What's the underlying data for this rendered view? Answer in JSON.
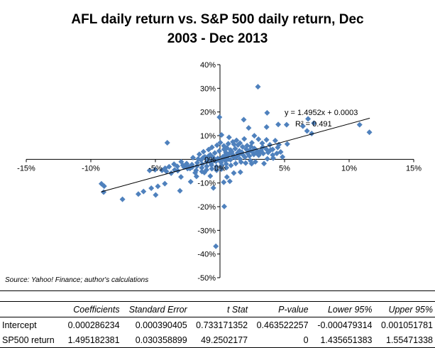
{
  "chart_data": {
    "type": "scatter",
    "title_line1": "AFL daily return vs. S&P 500  daily return, Dec",
    "title_line2": "2003 - Dec 2013",
    "xlim": [
      -0.15,
      0.15
    ],
    "ylim": [
      -0.5,
      0.4
    ],
    "x_ticks": [
      {
        "v": -0.15,
        "label": "-15%"
      },
      {
        "v": -0.1,
        "label": "-10%"
      },
      {
        "v": -0.05,
        "label": "-5%"
      },
      {
        "v": 0.0,
        "label": "0%"
      },
      {
        "v": 0.05,
        "label": "5%"
      },
      {
        "v": 0.1,
        "label": "10%"
      },
      {
        "v": 0.15,
        "label": "15%"
      }
    ],
    "y_ticks": [
      {
        "v": 0.4,
        "label": "40%"
      },
      {
        "v": 0.3,
        "label": "30%"
      },
      {
        "v": 0.2,
        "label": "20%"
      },
      {
        "v": 0.1,
        "label": "10%"
      },
      {
        "v": 0.0,
        "label": "0%"
      },
      {
        "v": -0.1,
        "label": "-10%"
      },
      {
        "v": -0.2,
        "label": "-20%"
      },
      {
        "v": -0.3,
        "label": "-30%"
      },
      {
        "v": -0.4,
        "label": "-40%"
      },
      {
        "v": -0.5,
        "label": "-50%"
      }
    ],
    "marker_color": "#4f81bd",
    "trendline": {
      "slope": 1.4952,
      "intercept": 0.0003,
      "x_range": [
        -0.092,
        0.116
      ]
    },
    "equation_label": "y = 1.4952x + 0.0003",
    "r2_label": "R² = 0.491",
    "source_note": "Source:  Yahoo! Finance; author's calculations",
    "points": [
      [
        0.0294,
        0.3067
      ],
      [
        -0.0918,
        -0.1033
      ],
      [
        -0.0897,
        -0.1135
      ],
      [
        -0.0901,
        -0.1384
      ],
      [
        -0.0408,
        0.07
      ],
      [
        -0.0755,
        -0.1688
      ],
      [
        -0.0632,
        -0.1466
      ],
      [
        -0.0592,
        -0.1359
      ],
      [
        -0.0532,
        -0.122
      ],
      [
        -0.0481,
        -0.1143
      ],
      [
        -0.0427,
        -0.103
      ],
      [
        -0.0498,
        -0.1505
      ],
      [
        -0.031,
        -0.133
      ],
      [
        -0.0051,
        -0.1208
      ],
      [
        0.0033,
        -0.1993
      ],
      [
        -0.0032,
        -0.3674
      ],
      [
        0.0029,
        -0.0967
      ],
      [
        0.0012,
        0.1029
      ],
      [
        -0.0004,
        0.178
      ],
      [
        0.0365,
        0.1965
      ],
      [
        0.0184,
        0.1674
      ],
      [
        0.0222,
        0.1328
      ],
      [
        0.0361,
        0.1362
      ],
      [
        0.0451,
        0.1471
      ],
      [
        0.0516,
        0.1462
      ],
      [
        0.0642,
        0.1401
      ],
      [
        0.0682,
        0.1707
      ],
      [
        0.0674,
        0.1197
      ],
      [
        0.071,
        0.1089
      ],
      [
        0.0727,
        0.1529
      ],
      [
        0.1081,
        0.146
      ],
      [
        0.1157,
        0.1142
      ],
      [
        0.0521,
        0.0649
      ],
      [
        0.0456,
        0.0621
      ],
      [
        0.036,
        0.0825
      ],
      [
        0.0408,
        0.0418
      ],
      [
        0.0341,
        -0.0178
      ],
      [
        0.0314,
        0.0296
      ],
      [
        0.0245,
        -0.0185
      ],
      [
        -0.0182,
        -0.0722
      ],
      [
        -0.0227,
        -0.0945
      ],
      [
        -0.0302,
        -0.0744
      ],
      [
        -0.0378,
        -0.0587
      ],
      [
        -0.0351,
        -0.0446
      ],
      [
        -0.0278,
        -0.033
      ],
      [
        -0.0545,
        -0.047
      ],
      [
        -0.0503,
        -0.044
      ],
      [
        -0.0449,
        -0.0465
      ],
      [
        -0.0415,
        -0.0513
      ],
      [
        -0.0327,
        -0.0482
      ],
      [
        0.0076,
        -0.0928
      ],
      [
        0.0054,
        -0.0749
      ],
      [
        0.0107,
        -0.0577
      ],
      [
        0.0158,
        -0.0542
      ],
      [
        -0.0075,
        -0.0707
      ],
      [
        -0.0121,
        -0.0561
      ],
      [
        -0.0185,
        -0.0467
      ],
      [
        -0.0232,
        -0.0387
      ],
      [
        -0.0252,
        -0.0267
      ],
      [
        0.0188,
        0.086
      ],
      [
        0.0128,
        0.0802
      ],
      [
        0.007,
        0.0929
      ],
      [
        0.0109,
        0.0633
      ],
      [
        0.0247,
        0.07
      ],
      [
        0.0266,
        0.0998
      ],
      [
        0.0298,
        0.085
      ],
      [
        0.0327,
        0.0683
      ],
      [
        0.0386,
        0.0614
      ],
      [
        0.0428,
        0.0789
      ],
      [
        0.0447,
        0.0501
      ],
      [
        -0.0128,
        0.0321
      ],
      [
        -0.0088,
        0.0412
      ],
      [
        -0.0062,
        0.051
      ],
      [
        -0.0023,
        0.0596
      ],
      [
        0.0003,
        0.0708
      ],
      [
        -0.016,
        0.0213
      ],
      [
        -0.0117,
        0.0107
      ],
      [
        -0.0075,
        0.0192
      ],
      [
        -0.004,
        0.0268
      ],
      [
        -0.0006,
        0.0353
      ],
      [
        0.0031,
        0.0424
      ],
      [
        0.0054,
        0.0478
      ],
      [
        0.0082,
        0.0392
      ],
      [
        0.0118,
        0.0447
      ],
      [
        0.015,
        0.0357
      ],
      [
        0.0175,
        0.0527
      ],
      [
        0.0203,
        0.0433
      ],
      [
        0.0231,
        0.0388
      ],
      [
        0.0267,
        0.0461
      ],
      [
        0.029,
        0.0342
      ],
      [
        -0.03,
        -0.0101
      ],
      [
        -0.0258,
        -0.0179
      ],
      [
        -0.0217,
        -0.0223
      ],
      [
        -0.0176,
        -0.0144
      ],
      [
        -0.0137,
        -0.0205
      ],
      [
        -0.0104,
        -0.011
      ],
      [
        -0.0069,
        -0.0165
      ],
      [
        -0.0031,
        -0.0082
      ],
      [
        0.0008,
        -0.0133
      ],
      [
        0.0042,
        -0.006
      ],
      [
        0.0081,
        -0.0021
      ],
      [
        0.0119,
        0.0063
      ],
      [
        0.0155,
        0.0011
      ],
      [
        0.0193,
        0.0093
      ],
      [
        0.0228,
        0.0141
      ],
      [
        0.0262,
        0.0205
      ],
      [
        0.03,
        0.0172
      ],
      [
        0.0335,
        0.0246
      ],
      [
        0.0373,
        0.0288
      ],
      [
        0.0408,
        0.0181
      ],
      [
        -0.0251,
        -0.0393
      ],
      [
        -0.0215,
        -0.0332
      ],
      [
        -0.0178,
        -0.0288
      ],
      [
        -0.0141,
        -0.0357
      ],
      [
        -0.0103,
        -0.0295
      ],
      [
        -0.0066,
        -0.0241
      ],
      [
        -0.0028,
        -0.0307
      ],
      [
        0.0012,
        -0.0254
      ],
      [
        0.0048,
        -0.0198
      ],
      [
        0.0085,
        -0.0255
      ],
      [
        0.0122,
        -0.0178
      ],
      [
        0.0163,
        -0.0114
      ],
      [
        0.0199,
        -0.016
      ],
      [
        0.0236,
        -0.0058
      ],
      [
        0.0274,
        -0.0105
      ],
      [
        -0.0356,
        -0.0203
      ],
      [
        -0.033,
        -0.0296
      ],
      [
        -0.0287,
        -0.0253
      ],
      [
        -0.0394,
        -0.0312
      ],
      [
        -0.0425,
        -0.0375
      ],
      [
        -0.0209,
        0.0071
      ],
      [
        -0.0169,
        0.0019
      ],
      [
        -0.0131,
        0.0066
      ],
      [
        -0.0092,
        0.0002
      ],
      [
        -0.0054,
        0.0085
      ],
      [
        -0.0018,
        0.0037
      ],
      [
        0.0021,
        0.0103
      ],
      [
        0.006,
        0.0159
      ],
      [
        0.0097,
        0.0208
      ],
      [
        0.0136,
        0.0265
      ],
      [
        0.017,
        0.0298
      ],
      [
        0.0214,
        0.0253
      ],
      [
        0.0249,
        0.0318
      ],
      [
        0.0283,
        0.0268
      ],
      [
        0.0318,
        0.0372
      ],
      [
        0.0046,
        0.0285
      ],
      [
        0.0092,
        0.0318
      ],
      [
        0.0035,
        0.0153
      ],
      [
        -0.0104,
        -0.0442
      ],
      [
        -0.0063,
        -0.0398
      ],
      [
        -0.0026,
        -0.0461
      ],
      [
        0.0011,
        -0.0415
      ],
      [
        0.005,
        -0.0352
      ],
      [
        -0.014,
        -0.0515
      ],
      [
        -0.0192,
        -0.0568
      ],
      [
        0.003,
        0.0567
      ],
      [
        0.0064,
        0.0659
      ],
      [
        0.01,
        0.0737
      ],
      [
        0.0139,
        0.0607
      ],
      [
        0.0155,
        0.0684
      ],
      [
        0.021,
        0.0579
      ],
      [
        0.0239,
        0.0544
      ],
      [
        0.0331,
        0.0518
      ],
      [
        0.0359,
        0.0428
      ],
      [
        0.0392,
        0.0397
      ],
      [
        -0.0003,
        -0.004
      ],
      [
        -0.001,
        0.001
      ],
      [
        0.0015,
        -0.002
      ],
      [
        0.0025,
        0.003
      ],
      [
        -0.002,
        0.0015
      ],
      [
        0.0044,
        0.0074
      ],
      [
        -0.0045,
        -0.0048
      ],
      [
        0.0064,
        0.0006
      ],
      [
        -0.008,
        -0.006
      ],
      [
        0.0102,
        0.0115
      ],
      [
        0.0073,
        0.025
      ],
      [
        -0.0089,
        0.0135
      ],
      [
        0.0141,
        0.0174
      ],
      [
        -0.0147,
        -0.003
      ],
      [
        0.0175,
        0.02
      ],
      [
        0.044,
        0.025
      ],
      [
        0.047,
        0.031
      ],
      [
        0.0484,
        0.01
      ],
      [
        0.0367,
        0.002
      ],
      [
        0.0412,
        0.0049
      ]
    ]
  },
  "table": {
    "headers": [
      "",
      "Coefficients",
      "Standard Error",
      "t Stat",
      "P-value",
      "Lower 95%",
      "Upper 95%"
    ],
    "rows": [
      [
        "Intercept",
        "0.000286234",
        "0.000390405",
        "0.733171352",
        "0.463522257",
        "-0.000479314",
        "0.001051781"
      ],
      [
        "SP500 return",
        "1.495182381",
        "0.030358899",
        "49.2502177",
        "0",
        "1.435651383",
        "1.55471338"
      ]
    ]
  }
}
